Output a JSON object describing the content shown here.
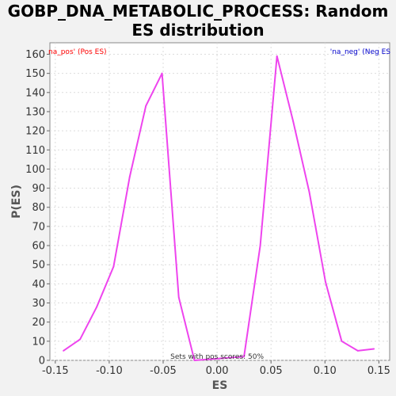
{
  "chart_data": {
    "type": "line",
    "title_line1": "GOBP_DNA_METABOLIC_PROCESS: Random",
    "title_line2": "ES distribution",
    "xlabel": "ES",
    "ylabel": "P(ES)",
    "xlim": [
      -0.155,
      0.16
    ],
    "ylim": [
      0,
      166
    ],
    "x_ticks": [
      -0.15,
      -0.1,
      -0.05,
      0.0,
      0.05,
      0.1,
      0.15
    ],
    "x_tick_labels": [
      "-0.15",
      "-0.10",
      "-0.05",
      "0.00",
      "0.05",
      "0.10",
      "0.15"
    ],
    "y_ticks": [
      0,
      10,
      20,
      30,
      40,
      50,
      60,
      70,
      80,
      90,
      100,
      110,
      120,
      130,
      140,
      150,
      160
    ],
    "grid": true,
    "legend": [
      {
        "label": "na_pos' (Pos ES)",
        "color": "#ff0000",
        "position": "top-left"
      },
      {
        "label": "'na_neg' (Neg ES",
        "color": "#0000cc",
        "position": "top-right"
      }
    ],
    "annotation": "Sets with pos scores: 50%",
    "series": [
      {
        "color": "#ee44ee",
        "x": [
          -0.1425,
          -0.127,
          -0.1115,
          -0.096,
          -0.081,
          -0.066,
          -0.051,
          -0.0355,
          -0.021,
          0.025,
          0.04,
          0.0555,
          0.0705,
          0.0855,
          0.1005,
          0.1155,
          0.1305,
          0.1455
        ],
        "y": [
          5,
          11,
          28,
          49,
          96,
          133,
          150,
          33,
          0,
          2,
          60,
          159,
          125,
          88,
          41,
          10,
          5,
          6
        ]
      }
    ]
  }
}
